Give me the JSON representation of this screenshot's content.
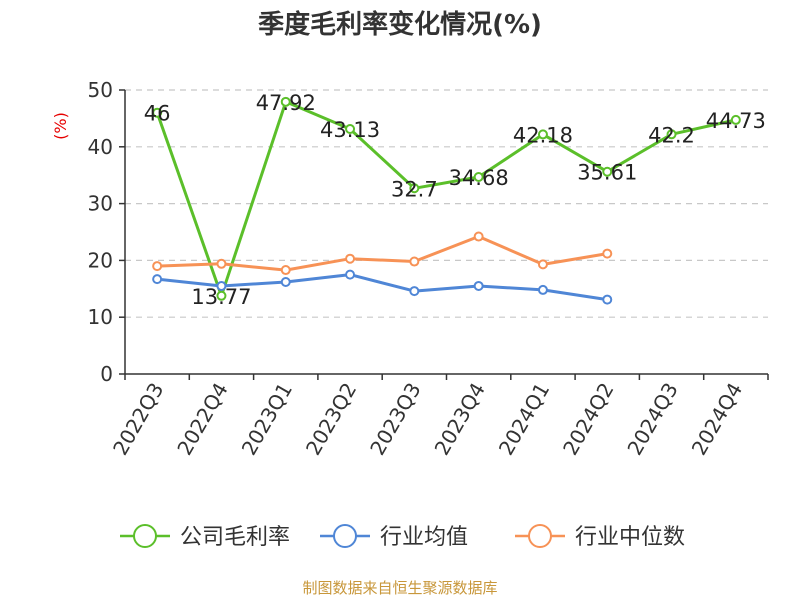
{
  "title": "季度毛利率变化情况(%)",
  "unit_label": "(%)",
  "source": "制图数据来自恒生聚源数据库",
  "chart_data": {
    "type": "line",
    "title": "季度毛利率变化情况(%)",
    "ylabel": "(%)",
    "xlabel": "",
    "ylim": [
      0,
      50
    ],
    "yticks": [
      0,
      10,
      20,
      30,
      40,
      50
    ],
    "grid": true,
    "legend_position": "bottom",
    "categories": [
      "2022Q3",
      "2022Q4",
      "2023Q1",
      "2023Q2",
      "2023Q3",
      "2023Q4",
      "2024Q1",
      "2024Q2",
      "2024Q3",
      "2024Q4"
    ],
    "series": [
      {
        "name": "公司毛利率",
        "color": "#5bbf2a",
        "values": [
          46,
          13.77,
          47.92,
          43.13,
          32.7,
          34.68,
          42.18,
          35.61,
          42.2,
          44.73
        ],
        "labels": [
          "46",
          "13.77",
          "47.92",
          "43.13",
          "32.7",
          "34.68",
          "42.18",
          "35.61",
          "42.2",
          "44.73"
        ]
      },
      {
        "name": "行业均值",
        "color": "#4f86d6",
        "values": [
          16.7,
          15.5,
          16.2,
          17.5,
          14.6,
          15.5,
          14.8,
          13.1,
          null,
          null
        ]
      },
      {
        "name": "行业中位数",
        "color": "#f79256",
        "values": [
          19.0,
          19.4,
          18.3,
          20.3,
          19.8,
          24.2,
          19.3,
          21.2,
          null,
          null
        ]
      }
    ]
  }
}
